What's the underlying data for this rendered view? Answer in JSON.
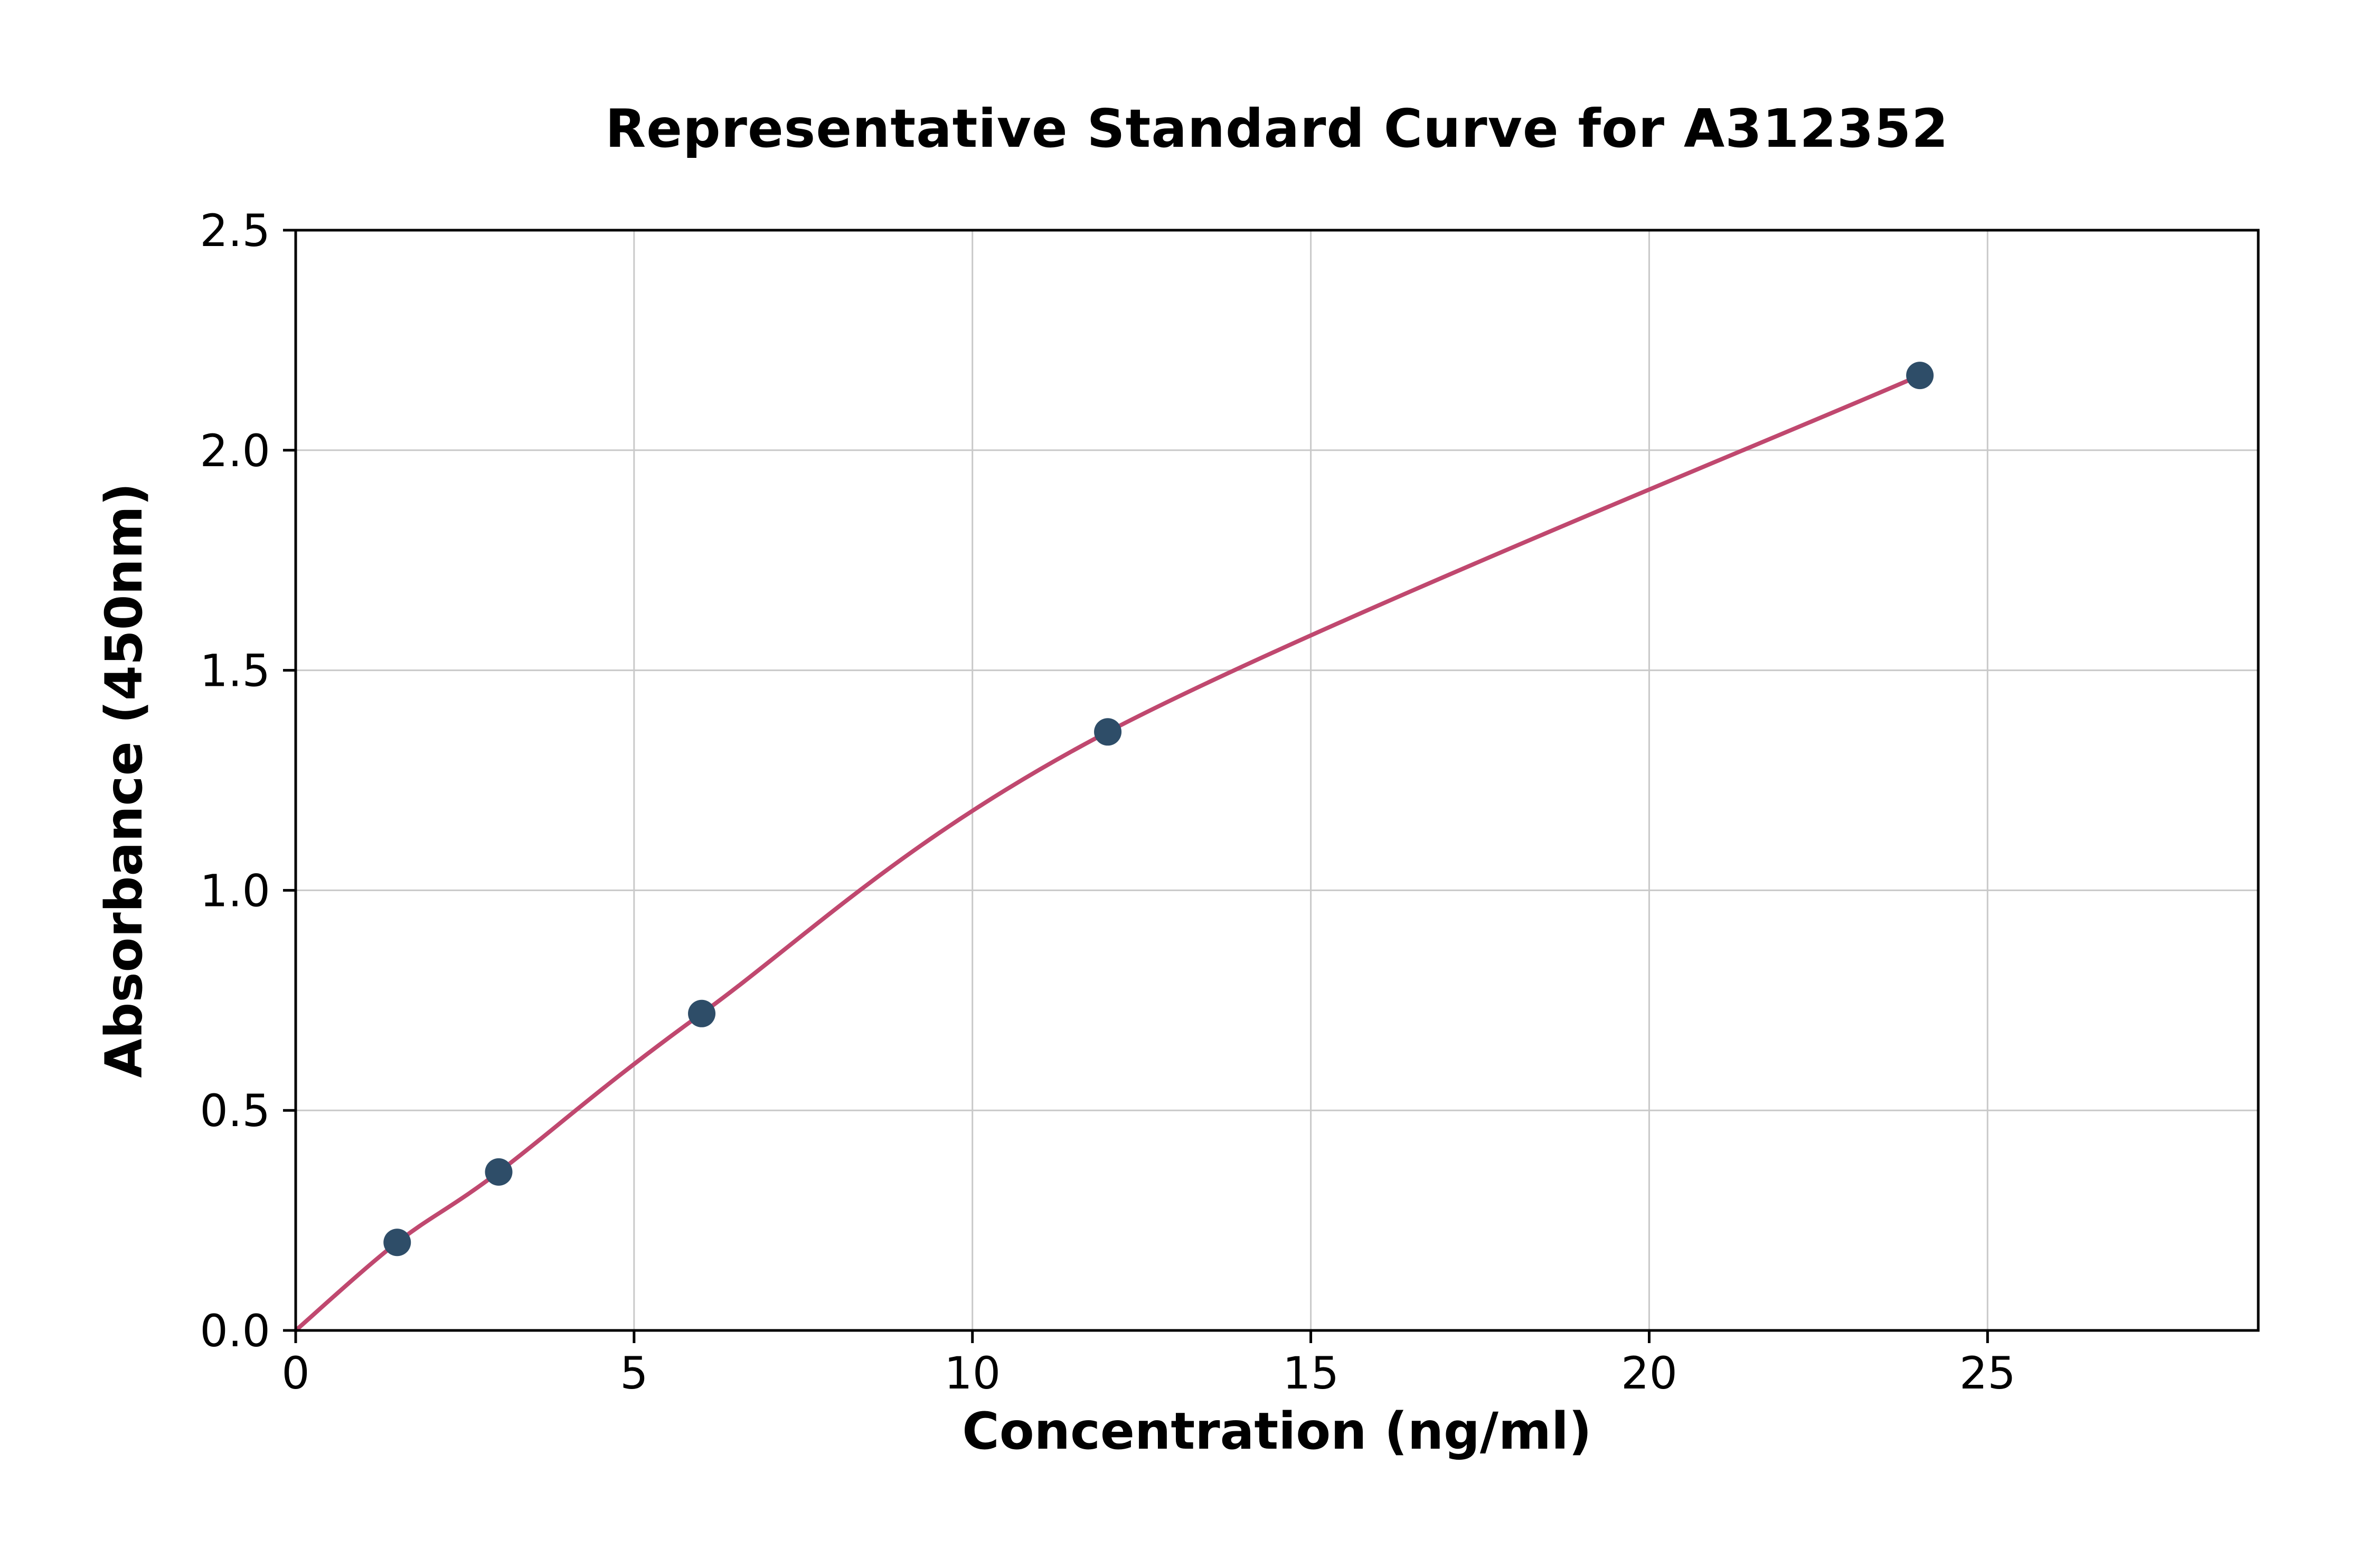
{
  "chart_data": {
    "type": "scatter",
    "title": "Representative Standard Curve for A312352",
    "xlabel": "Concentration (ng/ml)",
    "ylabel": "Absorbance (450nm)",
    "xlim": [
      0,
      29
    ],
    "ylim": [
      0,
      2.5
    ],
    "xticks": {
      "values": [
        0,
        5,
        10,
        15,
        20,
        25
      ],
      "labels": [
        "0",
        "5",
        "10",
        "15",
        "20",
        "25"
      ]
    },
    "yticks": {
      "values": [
        0,
        0.5,
        1.0,
        1.5,
        2.0,
        2.5
      ],
      "labels": [
        "0.0",
        "0.5",
        "1.0",
        "1.5",
        "2.0",
        "2.5"
      ]
    },
    "grid": true,
    "legend": false,
    "points": [
      [
        1.5,
        0.2
      ],
      [
        3,
        0.36
      ],
      [
        6,
        0.72
      ],
      [
        12,
        1.36
      ],
      [
        24,
        2.17
      ]
    ],
    "fit_curve": [
      [
        0,
        0
      ],
      [
        1.5,
        0.2
      ],
      [
        3,
        0.36
      ],
      [
        6,
        0.72
      ],
      [
        12,
        1.36
      ],
      [
        24,
        2.17
      ]
    ],
    "colors": {
      "curve": "#c0486f",
      "marker": "#2e4d68",
      "grid": "#c9c9c9",
      "axis": "#000000",
      "text": "#000000",
      "background": "#ffffff"
    }
  }
}
